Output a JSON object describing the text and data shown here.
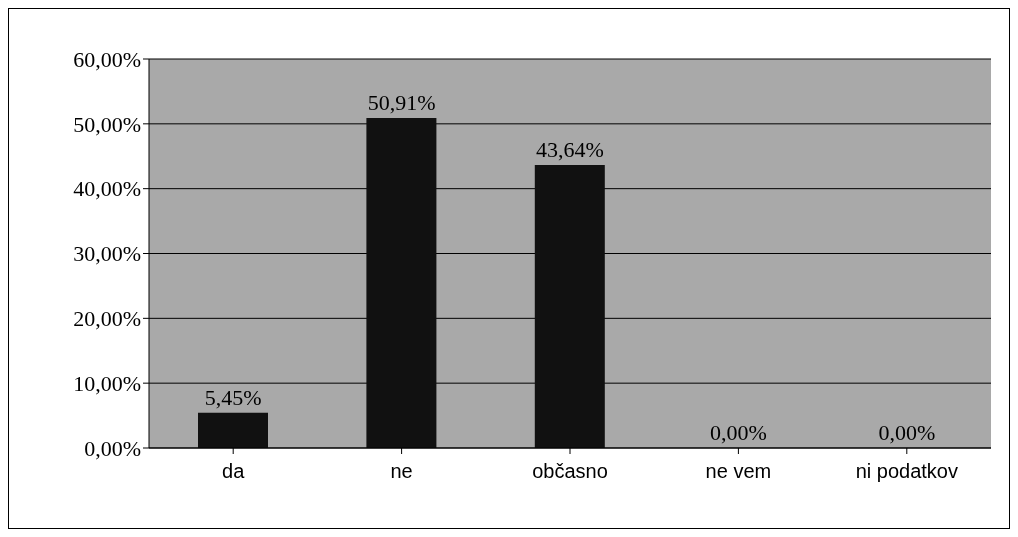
{
  "chart_data": {
    "type": "bar",
    "categories": [
      "da",
      "ne",
      "občasno",
      "ne vem",
      "ni podatkov"
    ],
    "values": [
      5.45,
      50.91,
      43.64,
      0,
      0
    ],
    "color": "#111111",
    "value_labels": [
      "5,45%",
      "50,91%",
      "43,64%",
      "0,00%",
      "0,00%"
    ],
    "ylim": [
      0,
      60
    ],
    "yticks": [
      {
        "value": 0,
        "label": "0,00%"
      },
      {
        "value": 10,
        "label": "10,00%"
      },
      {
        "value": 20,
        "label": "20,00%"
      },
      {
        "value": 30,
        "label": "30,00%"
      },
      {
        "value": 40,
        "label": "40,00%"
      },
      {
        "value": 50,
        "label": "50,00%"
      },
      {
        "value": 60,
        "label": "60,00%"
      }
    ],
    "grid": "y",
    "legend": false
  }
}
